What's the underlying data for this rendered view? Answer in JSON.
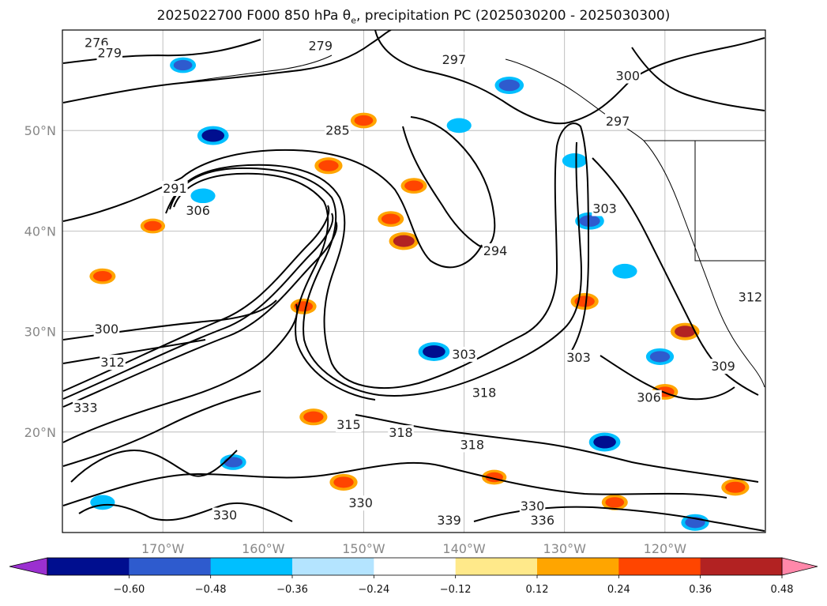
{
  "chart_data": {
    "type": "heatmap",
    "title": "2025022700 F000 850 hPa θ",
    "title_sub": "e",
    "title_rest": ", precipitation PC (2025030200 - 2025030300)",
    "map": {
      "lon_range": [
        -180,
        -110
      ],
      "lat_range": [
        10,
        60
      ],
      "lon_ticks": [
        {
          "value": -170,
          "label": "170°W"
        },
        {
          "value": -160,
          "label": "160°W"
        },
        {
          "value": -150,
          "label": "150°W"
        },
        {
          "value": -140,
          "label": "140°W"
        },
        {
          "value": -130,
          "label": "130°W"
        },
        {
          "value": -120,
          "label": "120°W"
        }
      ],
      "lat_ticks": [
        {
          "value": 20,
          "label": "20°N"
        },
        {
          "value": 30,
          "label": "30°N"
        },
        {
          "value": 40,
          "label": "40°N"
        },
        {
          "value": 50,
          "label": "50°N"
        }
      ],
      "grid": true
    },
    "theta_e_contours": {
      "color": "#000000",
      "labels": [
        {
          "text": "276",
          "lon": -176.6,
          "lat": 58.3
        },
        {
          "text": "279",
          "lon": -175.3,
          "lat": 57.3
        },
        {
          "text": "279",
          "lon": -154.3,
          "lat": 58.0
        },
        {
          "text": "297",
          "lon": -141.0,
          "lat": 56.6
        },
        {
          "text": "300",
          "lon": -123.7,
          "lat": 55.0
        },
        {
          "text": "285",
          "lon": -152.6,
          "lat": 49.6
        },
        {
          "text": "297",
          "lon": -124.7,
          "lat": 50.5
        },
        {
          "text": "291",
          "lon": -168.8,
          "lat": 43.8
        },
        {
          "text": "306",
          "lon": -166.5,
          "lat": 41.6
        },
        {
          "text": "294",
          "lon": -136.9,
          "lat": 37.6
        },
        {
          "text": "303",
          "lon": -126.0,
          "lat": 41.8
        },
        {
          "text": "300",
          "lon": -175.6,
          "lat": 29.8
        },
        {
          "text": "303",
          "lon": -140.0,
          "lat": 27.3
        },
        {
          "text": "303",
          "lon": -128.6,
          "lat": 27.0
        },
        {
          "text": "306",
          "lon": -121.6,
          "lat": 23.0
        },
        {
          "text": "309",
          "lon": -114.2,
          "lat": 26.1
        },
        {
          "text": "312",
          "lon": -111.5,
          "lat": 33.0
        },
        {
          "text": "312",
          "lon": -175.0,
          "lat": 26.5
        },
        {
          "text": "318",
          "lon": -138.0,
          "lat": 23.5
        },
        {
          "text": "318",
          "lon": -146.3,
          "lat": 19.5
        },
        {
          "text": "318",
          "lon": -139.2,
          "lat": 18.3
        },
        {
          "text": "315",
          "lon": -151.5,
          "lat": 20.3
        },
        {
          "text": "333",
          "lon": -177.7,
          "lat": 22.0
        },
        {
          "text": "330",
          "lon": -150.3,
          "lat": 12.5
        },
        {
          "text": "330",
          "lon": -163.8,
          "lat": 11.3
        },
        {
          "text": "339",
          "lon": -141.5,
          "lat": 10.8
        },
        {
          "text": "336",
          "lon": -132.2,
          "lat": 10.8
        },
        {
          "text": "330",
          "lon": -133.2,
          "lat": 12.2
        }
      ]
    },
    "precip_pc_colorbar": {
      "extend": "both",
      "boundaries": [
        -0.6,
        -0.48,
        -0.36,
        -0.24,
        -0.12,
        0.12,
        0.24,
        0.36,
        0.48,
        0.6
      ],
      "tick_labels": [
        "−0.60",
        "−0.48",
        "−0.36",
        "−0.24",
        "−0.12",
        "0.12",
        "0.24",
        "0.36",
        "0.48",
        "0.60"
      ],
      "colors": [
        "#9b30d0",
        "#000e8f",
        "#2e5bce",
        "#00bfff",
        "#b4e4ff",
        "#ffffff",
        "#ffe98a",
        "#ffa500",
        "#ff4500",
        "#b22222",
        "#ff88aa"
      ]
    },
    "precip_pc_blobs": [
      {
        "lon": -146.0,
        "lat": 39.0,
        "value": 0.5
      },
      {
        "lon": -147.3,
        "lat": 41.2,
        "value": 0.4
      },
      {
        "lon": -153.5,
        "lat": 46.5,
        "value": 0.45
      },
      {
        "lon": -145.0,
        "lat": 44.5,
        "value": 0.4
      },
      {
        "lon": -150.0,
        "lat": 51.0,
        "value": 0.4
      },
      {
        "lon": -165.0,
        "lat": 49.5,
        "value": -0.55
      },
      {
        "lon": -143.0,
        "lat": 28.0,
        "value": -0.55
      },
      {
        "lon": -126.0,
        "lat": 19.0,
        "value": -0.55
      },
      {
        "lon": -120.5,
        "lat": 27.5,
        "value": -0.45
      },
      {
        "lon": -166.0,
        "lat": 43.5,
        "value": -0.36
      },
      {
        "lon": -163.0,
        "lat": 17.0,
        "value": -0.4
      },
      {
        "lon": -171.0,
        "lat": 40.5,
        "value": 0.36
      },
      {
        "lon": -176.0,
        "lat": 35.5,
        "value": 0.4
      },
      {
        "lon": -128.0,
        "lat": 33.0,
        "value": 0.45
      },
      {
        "lon": -155.0,
        "lat": 21.5,
        "value": 0.45
      },
      {
        "lon": -127.5,
        "lat": 41.0,
        "value": -0.48
      },
      {
        "lon": -135.5,
        "lat": 54.5,
        "value": -0.48
      },
      {
        "lon": -168.0,
        "lat": 56.5,
        "value": -0.4
      },
      {
        "lon": -118.0,
        "lat": 30.0,
        "value": 0.48
      },
      {
        "lon": -120.0,
        "lat": 24.0,
        "value": 0.4
      },
      {
        "lon": -113.0,
        "lat": 14.5,
        "value": 0.45
      },
      {
        "lon": -125.0,
        "lat": 13.0,
        "value": 0.4
      },
      {
        "lon": -117.0,
        "lat": 11.0,
        "value": -0.45
      },
      {
        "lon": -129.0,
        "lat": 47.0,
        "value": -0.36
      },
      {
        "lon": -152.0,
        "lat": 15.0,
        "value": 0.45
      },
      {
        "lon": -156.0,
        "lat": 32.5,
        "value": 0.4
      },
      {
        "lon": -124.0,
        "lat": 36.0,
        "value": -0.36
      },
      {
        "lon": -176.0,
        "lat": 13.0,
        "value": -0.36
      },
      {
        "lon": -137.0,
        "lat": 15.5,
        "value": 0.36
      },
      {
        "lon": -140.5,
        "lat": 50.5,
        "value": -0.36
      }
    ]
  }
}
